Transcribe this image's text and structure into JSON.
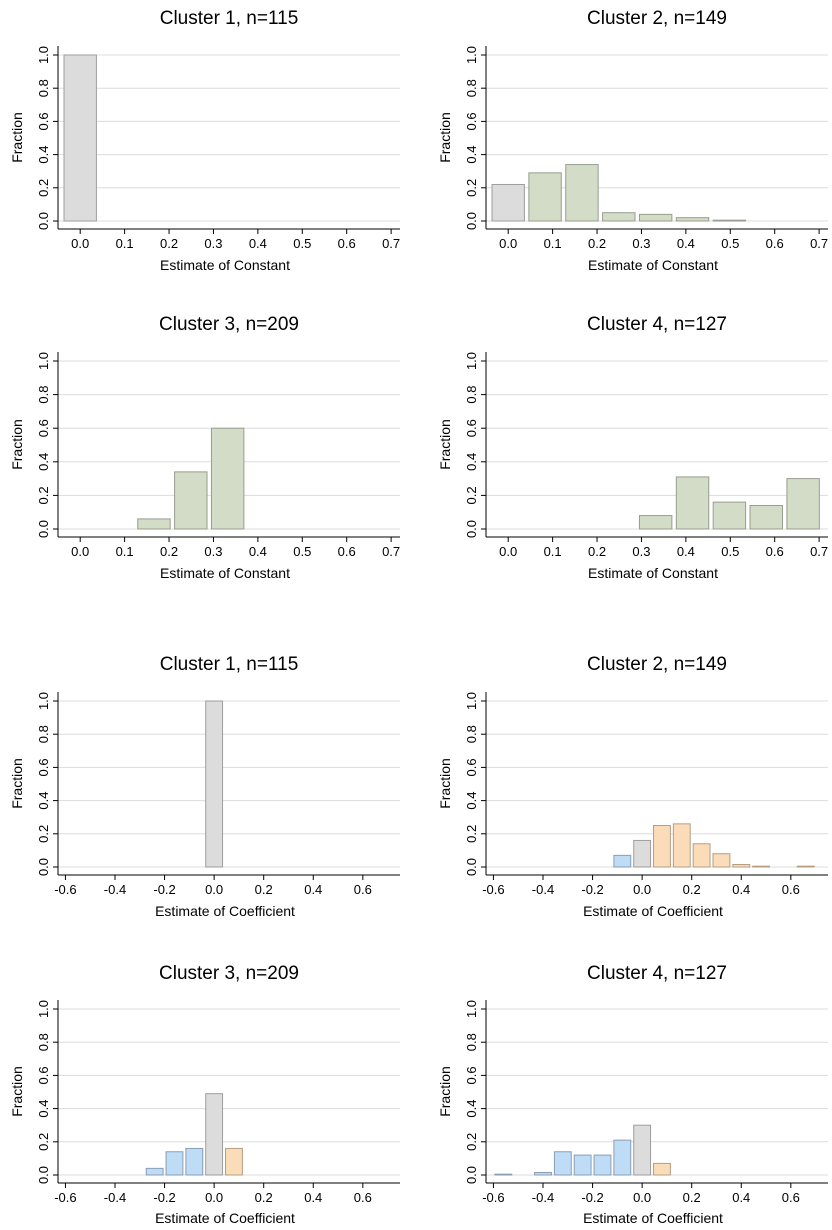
{
  "chart_data": [
    {
      "type": "bar",
      "title": "Cluster 1, n=115",
      "xlabel": "Estimate of Constant",
      "ylabel": "Fraction",
      "xlim": [
        -0.05,
        0.72
      ],
      "ylim": [
        0,
        1
      ],
      "xticks": [
        "0.0",
        "0.1",
        "0.2",
        "0.3",
        "0.4",
        "0.5",
        "0.6",
        "0.7"
      ],
      "yticks": [
        "0.0",
        "0.2",
        "0.4",
        "0.6",
        "0.8",
        "1.0"
      ],
      "bin_width": 0.073,
      "bars": [
        {
          "x": 0.0,
          "value": 1.0,
          "color": "#dcdcdc"
        }
      ]
    },
    {
      "type": "bar",
      "title": "Cluster 2, n=149",
      "xlabel": "Estimate of Constant",
      "ylabel": "Fraction",
      "xlim": [
        -0.05,
        0.72
      ],
      "ylim": [
        0,
        1
      ],
      "xticks": [
        "0.0",
        "0.1",
        "0.2",
        "0.3",
        "0.4",
        "0.5",
        "0.6",
        "0.7"
      ],
      "yticks": [
        "0.0",
        "0.2",
        "0.4",
        "0.6",
        "0.8",
        "1.0"
      ],
      "bin_width": 0.073,
      "bars": [
        {
          "x": 0.0,
          "value": 0.22,
          "color": "#dcdcdc"
        },
        {
          "x": 0.083,
          "value": 0.29,
          "color": "#d2dcc6"
        },
        {
          "x": 0.166,
          "value": 0.34,
          "color": "#d2dcc6"
        },
        {
          "x": 0.249,
          "value": 0.05,
          "color": "#d2dcc6"
        },
        {
          "x": 0.332,
          "value": 0.04,
          "color": "#d2dcc6"
        },
        {
          "x": 0.415,
          "value": 0.02,
          "color": "#d2dcc6"
        },
        {
          "x": 0.498,
          "value": 0.005,
          "color": "#d2dcc6"
        }
      ]
    },
    {
      "type": "bar",
      "title": "Cluster 3, n=209",
      "xlabel": "Estimate of Constant",
      "ylabel": "Fraction",
      "xlim": [
        -0.05,
        0.72
      ],
      "ylim": [
        0,
        1
      ],
      "xticks": [
        "0.0",
        "0.1",
        "0.2",
        "0.3",
        "0.4",
        "0.5",
        "0.6",
        "0.7"
      ],
      "yticks": [
        "0.0",
        "0.2",
        "0.4",
        "0.6",
        "0.8",
        "1.0"
      ],
      "bin_width": 0.073,
      "bars": [
        {
          "x": 0.166,
          "value": 0.06,
          "color": "#d2dcc6"
        },
        {
          "x": 0.249,
          "value": 0.34,
          "color": "#d2dcc6"
        },
        {
          "x": 0.332,
          "value": 0.6,
          "color": "#d2dcc6"
        }
      ]
    },
    {
      "type": "bar",
      "title": "Cluster 4, n=127",
      "xlabel": "Estimate of Constant",
      "ylabel": "Fraction",
      "xlim": [
        -0.05,
        0.72
      ],
      "ylim": [
        0,
        1
      ],
      "xticks": [
        "0.0",
        "0.1",
        "0.2",
        "0.3",
        "0.4",
        "0.5",
        "0.6",
        "0.7"
      ],
      "yticks": [
        "0.0",
        "0.2",
        "0.4",
        "0.6",
        "0.8",
        "1.0"
      ],
      "bin_width": 0.073,
      "bars": [
        {
          "x": 0.332,
          "value": 0.08,
          "color": "#d2dcc6"
        },
        {
          "x": 0.415,
          "value": 0.31,
          "color": "#d2dcc6"
        },
        {
          "x": 0.498,
          "value": 0.16,
          "color": "#d2dcc6"
        },
        {
          "x": 0.581,
          "value": 0.14,
          "color": "#d2dcc6"
        },
        {
          "x": 0.664,
          "value": 0.3,
          "color": "#d2dcc6"
        }
      ]
    },
    {
      "type": "bar",
      "title": "Cluster 1, n=115",
      "xlabel": "Estimate of Coefficient",
      "ylabel": "Fraction",
      "xlim": [
        -0.63,
        0.75
      ],
      "ylim": [
        0,
        1
      ],
      "xticks": [
        "-0.6",
        "-0.4",
        "-0.2",
        "0.0",
        "0.2",
        "0.4",
        "0.6"
      ],
      "yticks": [
        "0.0",
        "0.2",
        "0.4",
        "0.6",
        "0.8",
        "1.0"
      ],
      "bin_width": 0.068,
      "bars": [
        {
          "x": 0.0,
          "value": 1.0,
          "color": "#dcdcdc"
        }
      ]
    },
    {
      "type": "bar",
      "title": "Cluster 2, n=149",
      "xlabel": "Estimate of Coefficient",
      "ylabel": "Fraction",
      "xlim": [
        -0.63,
        0.75
      ],
      "ylim": [
        0,
        1
      ],
      "xticks": [
        "-0.6",
        "-0.4",
        "-0.2",
        "0.0",
        "0.2",
        "0.4",
        "0.6"
      ],
      "yticks": [
        "0.0",
        "0.2",
        "0.4",
        "0.6",
        "0.8",
        "1.0"
      ],
      "bin_width": 0.068,
      "bars": [
        {
          "x": -0.08,
          "value": 0.07,
          "color": "#bfdcf7"
        },
        {
          "x": 0.0,
          "value": 0.16,
          "color": "#dcdcdc"
        },
        {
          "x": 0.08,
          "value": 0.25,
          "color": "#fbdcb8"
        },
        {
          "x": 0.16,
          "value": 0.26,
          "color": "#fbdcb8"
        },
        {
          "x": 0.24,
          "value": 0.14,
          "color": "#fbdcb8"
        },
        {
          "x": 0.32,
          "value": 0.08,
          "color": "#fbdcb8"
        },
        {
          "x": 0.4,
          "value": 0.015,
          "color": "#fbdcb8"
        },
        {
          "x": 0.48,
          "value": 0.005,
          "color": "#fbdcb8"
        },
        {
          "x": 0.66,
          "value": 0.005,
          "color": "#fbdcb8"
        }
      ]
    },
    {
      "type": "bar",
      "title": "Cluster 3, n=209",
      "xlabel": "Estimate of Coefficient",
      "ylabel": "Fraction",
      "xlim": [
        -0.63,
        0.75
      ],
      "ylim": [
        0,
        1
      ],
      "xticks": [
        "-0.6",
        "-0.4",
        "-0.2",
        "0.0",
        "0.2",
        "0.4",
        "0.6"
      ],
      "yticks": [
        "0.0",
        "0.2",
        "0.4",
        "0.6",
        "0.8",
        "1.0"
      ],
      "bin_width": 0.068,
      "bars": [
        {
          "x": -0.24,
          "value": 0.04,
          "color": "#bfdcf7"
        },
        {
          "x": -0.16,
          "value": 0.14,
          "color": "#bfdcf7"
        },
        {
          "x": -0.08,
          "value": 0.16,
          "color": "#bfdcf7"
        },
        {
          "x": 0.0,
          "value": 0.49,
          "color": "#dcdcdc"
        },
        {
          "x": 0.08,
          "value": 0.16,
          "color": "#fbdcb8"
        }
      ]
    },
    {
      "type": "bar",
      "title": "Cluster 4, n=127",
      "xlabel": "Estimate of Coefficient",
      "ylabel": "Fraction",
      "xlim": [
        -0.63,
        0.75
      ],
      "ylim": [
        0,
        1
      ],
      "xticks": [
        "-0.6",
        "-0.4",
        "-0.2",
        "0.0",
        "0.2",
        "0.4",
        "0.6"
      ],
      "yticks": [
        "0.0",
        "0.2",
        "0.4",
        "0.6",
        "0.8",
        "1.0"
      ],
      "bin_width": 0.068,
      "bars": [
        {
          "x": -0.56,
          "value": 0.005,
          "color": "#bfdcf7"
        },
        {
          "x": -0.4,
          "value": 0.015,
          "color": "#bfdcf7"
        },
        {
          "x": -0.32,
          "value": 0.14,
          "color": "#bfdcf7"
        },
        {
          "x": -0.24,
          "value": 0.12,
          "color": "#bfdcf7"
        },
        {
          "x": -0.16,
          "value": 0.12,
          "color": "#bfdcf7"
        },
        {
          "x": -0.08,
          "value": 0.21,
          "color": "#bfdcf7"
        },
        {
          "x": 0.0,
          "value": 0.3,
          "color": "#dcdcdc"
        },
        {
          "x": 0.08,
          "value": 0.07,
          "color": "#fbdcb8"
        }
      ]
    }
  ]
}
